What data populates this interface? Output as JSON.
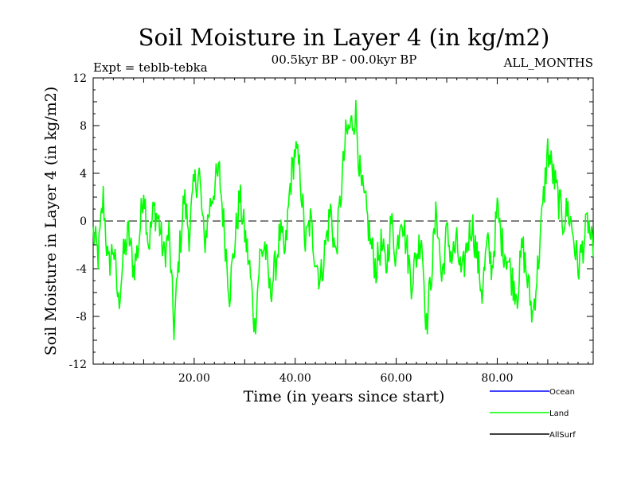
{
  "chart_data": {
    "type": "line",
    "title": "Soil Moisture in Layer 4 (in kg/m2)",
    "experiment": "Expt = teblb-tebka",
    "period": "00.5kyr BP - 00.0kyr BP",
    "months": "ALL_MONTHS",
    "xlabel": "Time (in years since start)",
    "ylabel": "Soil Moisture in Layer 4 (in kg/m2)",
    "xlim": [
      0,
      99
    ],
    "ylim": [
      -12,
      12
    ],
    "xticks": [
      20,
      40,
      60,
      80
    ],
    "xtick_labels": [
      "20.00",
      "40.00",
      "60.00",
      "80.00"
    ],
    "yticks": [
      -12,
      -8,
      -4,
      0,
      4,
      8,
      12
    ],
    "ytick_labels": [
      "-12",
      "-8",
      "-4",
      "0",
      "4",
      "8",
      "12"
    ],
    "zero_line": 0,
    "legend": [
      {
        "name": "Ocean",
        "color": "#0000ff"
      },
      {
        "name": "Land",
        "color": "#00ff00"
      },
      {
        "name": "AllSurf",
        "color": "#000000"
      }
    ],
    "series": [
      {
        "name": "Land",
        "color": "#00ff00",
        "x": [
          0,
          1,
          2,
          3,
          4,
          5,
          6,
          7,
          8,
          9,
          10,
          11,
          12,
          13,
          14,
          15,
          16,
          17,
          18,
          19,
          20,
          21,
          22,
          23,
          24,
          25,
          26,
          27,
          28,
          29,
          30,
          31,
          32,
          33,
          34,
          35,
          36,
          37,
          38,
          39,
          40,
          41,
          42,
          43,
          44,
          45,
          46,
          47,
          48,
          49,
          50,
          51,
          52,
          53,
          54,
          55,
          56,
          57,
          58,
          59,
          60,
          61,
          62,
          63,
          64,
          65,
          66,
          67,
          68,
          69,
          70,
          71,
          72,
          73,
          74,
          75,
          76,
          77,
          78,
          79,
          80,
          81,
          82,
          83,
          84,
          85,
          86,
          87,
          88,
          89,
          90,
          91,
          92,
          93,
          94,
          95,
          96,
          97,
          98,
          99
        ],
        "values": [
          -1,
          -3,
          2,
          -4,
          -2,
          -7,
          -3,
          -1,
          -4,
          -2,
          3,
          -2,
          1,
          0,
          -3,
          -1,
          -9,
          -3,
          2,
          -1,
          3,
          4,
          -2,
          1,
          3,
          4,
          -1,
          -6,
          -2,
          2,
          -1,
          -4,
          -9,
          -3,
          -2,
          -6,
          -4,
          -1,
          -3,
          3,
          6,
          4,
          -2,
          0,
          -3,
          -5,
          -2,
          1,
          -3,
          2,
          7,
          8,
          9,
          3,
          1,
          -2,
          -4,
          -2,
          -4,
          0,
          -3,
          1,
          -2,
          -5,
          -3,
          -1,
          -9,
          -4,
          1,
          -5,
          -1,
          -3,
          -2,
          -5,
          -2,
          0,
          -3,
          -6,
          -2,
          -4,
          1,
          -2,
          -3,
          -5,
          -6,
          -2,
          -5,
          -8,
          -4,
          1,
          6,
          4,
          2,
          0,
          1,
          -1,
          -4,
          -2,
          0,
          -3
        ]
      }
    ]
  }
}
